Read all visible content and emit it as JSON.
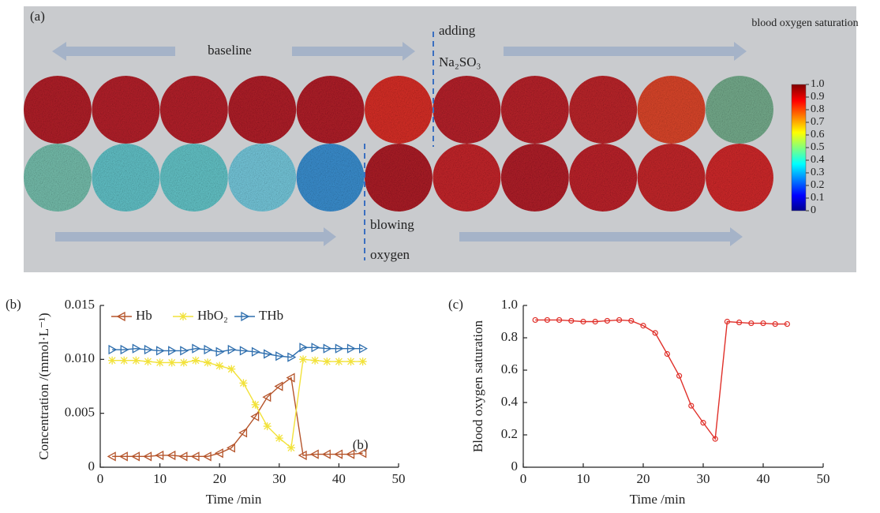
{
  "chart_data": [
    {
      "type": "colorbar",
      "label": "(a)",
      "title": "blood oxygen saturation",
      "annotations": [
        "baseline",
        "adding",
        "Na₂SO₃",
        "blowing",
        "oxygen"
      ],
      "ylim": [
        0,
        1
      ],
      "yticks": [
        0,
        0.1,
        0.2,
        0.3,
        0.4,
        0.5,
        0.6,
        0.7,
        0.8,
        0.9,
        {
          "value": 1,
          "label": "1.0"
        }
      ]
    },
    {
      "type": "line",
      "label": "(b)",
      "annotation": "(b)",
      "xlabel": "Time /min",
      "ylabel": "Concentration /(mmol·L⁻¹)",
      "x": [
        2,
        4,
        6,
        8,
        10,
        12,
        14,
        16,
        18,
        20,
        22,
        24,
        26,
        28,
        30,
        32,
        34,
        36,
        38,
        40,
        42,
        44
      ],
      "series": [
        {
          "name": "Hb",
          "color": "#b5542a",
          "marker": "<",
          "values": [
            0.001,
            0.001,
            0.001,
            0.001,
            0.0011,
            0.0011,
            0.001,
            0.001,
            0.001,
            0.0013,
            0.0018,
            0.0032,
            0.0047,
            0.0065,
            0.0075,
            0.0083,
            0.0011,
            0.0012,
            0.0012,
            0.0012,
            0.0012,
            0.0013
          ]
        },
        {
          "name": "HbO₂",
          "color": "#f2e23a",
          "marker": "*",
          "values": [
            0.0099,
            0.0099,
            0.0099,
            0.0098,
            0.0097,
            0.0097,
            0.0097,
            0.0099,
            0.0097,
            0.0094,
            0.0091,
            0.0078,
            0.0058,
            0.0038,
            0.0027,
            0.0018,
            0.01,
            0.0099,
            0.0098,
            0.0098,
            0.0098,
            0.0098
          ]
        },
        {
          "name": "THb",
          "color": "#2f6fae",
          "marker": ">",
          "values": [
            0.0109,
            0.0109,
            0.011,
            0.0109,
            0.0108,
            0.0108,
            0.0108,
            0.011,
            0.0109,
            0.0107,
            0.0109,
            0.0108,
            0.0107,
            0.0105,
            0.0103,
            0.0102,
            0.0111,
            0.0111,
            0.011,
            0.011,
            0.011,
            0.011
          ]
        }
      ],
      "xlim": [
        0,
        50
      ],
      "xticks": [
        0,
        10,
        20,
        30,
        40,
        50
      ],
      "ylim": [
        0,
        0.015
      ],
      "yticks": [
        0,
        0.005,
        {
          "value": 0.01,
          "label": "0.010"
        },
        0.015
      ],
      "legend": "top-left"
    },
    {
      "type": "line",
      "label": "(c)",
      "xlabel": "Time /min",
      "ylabel": "Blood oxygen saturation",
      "x": [
        2,
        4,
        6,
        8,
        10,
        12,
        14,
        16,
        18,
        20,
        22,
        24,
        26,
        28,
        30,
        32,
        34,
        36,
        38,
        40,
        42,
        44
      ],
      "series": [
        {
          "color": "#e0302a",
          "marker": "o",
          "values": [
            0.91,
            0.91,
            0.91,
            0.905,
            0.9,
            0.9,
            0.905,
            0.91,
            0.905,
            0.875,
            0.83,
            0.7,
            0.565,
            0.38,
            0.275,
            0.175,
            0.9,
            0.895,
            0.89,
            0.89,
            0.885,
            0.885
          ]
        }
      ],
      "xlim": [
        0,
        50
      ],
      "xticks": [
        0,
        10,
        20,
        30,
        40,
        50
      ],
      "ylim": [
        0,
        1
      ],
      "yticks": [
        0,
        0.2,
        0.4,
        0.6,
        0.8,
        {
          "value": 1,
          "label": "1.0"
        }
      ]
    }
  ]
}
